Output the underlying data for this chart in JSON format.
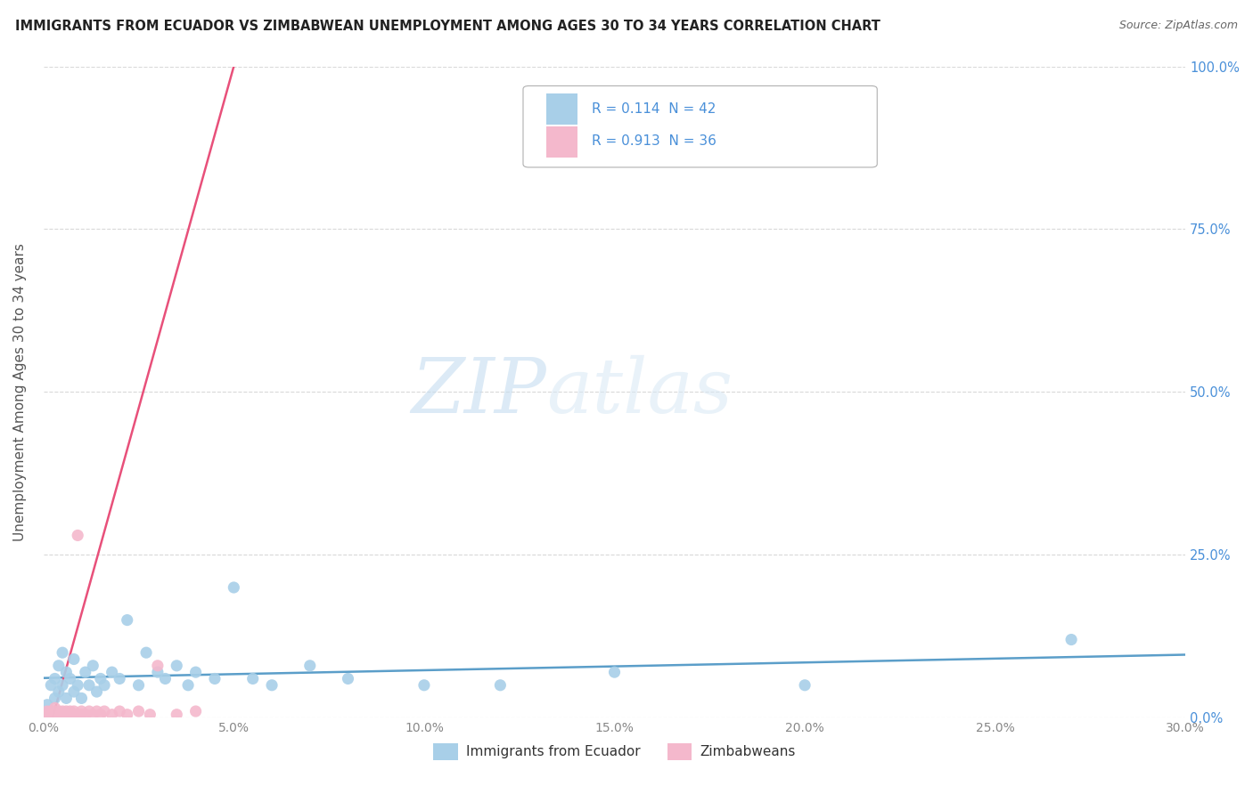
{
  "title": "IMMIGRANTS FROM ECUADOR VS ZIMBABWEAN UNEMPLOYMENT AMONG AGES 30 TO 34 YEARS CORRELATION CHART",
  "source": "Source: ZipAtlas.com",
  "ylabel": "Unemployment Among Ages 30 to 34 years",
  "xlim": [
    0.0,
    0.3
  ],
  "ylim": [
    0.0,
    1.0
  ],
  "xticks": [
    0.0,
    0.05,
    0.1,
    0.15,
    0.2,
    0.25,
    0.3
  ],
  "xticklabels": [
    "0.0%",
    "5.0%",
    "10.0%",
    "15.0%",
    "20.0%",
    "25.0%",
    "30.0%"
  ],
  "yticks": [
    0.0,
    0.25,
    0.5,
    0.75,
    1.0
  ],
  "yticklabels": [
    "0.0%",
    "25.0%",
    "50.0%",
    "75.0%",
    "100.0%"
  ],
  "watermark_zip": "ZIP",
  "watermark_atlas": "atlas",
  "legend_entries": [
    {
      "label": "Immigrants from Ecuador",
      "color": "#a8cfe8",
      "r": 0.114,
      "n": 42
    },
    {
      "label": "Zimbabweans",
      "color": "#f4b8cc",
      "r": 0.913,
      "n": 36
    }
  ],
  "ecuador_scatter_x": [
    0.001,
    0.002,
    0.003,
    0.003,
    0.004,
    0.004,
    0.005,
    0.005,
    0.006,
    0.006,
    0.007,
    0.008,
    0.008,
    0.009,
    0.01,
    0.011,
    0.012,
    0.013,
    0.014,
    0.015,
    0.016,
    0.018,
    0.02,
    0.022,
    0.025,
    0.027,
    0.03,
    0.032,
    0.035,
    0.038,
    0.04,
    0.045,
    0.05,
    0.055,
    0.06,
    0.07,
    0.08,
    0.1,
    0.12,
    0.15,
    0.2,
    0.27
  ],
  "ecuador_scatter_y": [
    0.02,
    0.05,
    0.03,
    0.06,
    0.04,
    0.08,
    0.05,
    0.1,
    0.03,
    0.07,
    0.06,
    0.04,
    0.09,
    0.05,
    0.03,
    0.07,
    0.05,
    0.08,
    0.04,
    0.06,
    0.05,
    0.07,
    0.06,
    0.15,
    0.05,
    0.1,
    0.07,
    0.06,
    0.08,
    0.05,
    0.07,
    0.06,
    0.2,
    0.06,
    0.05,
    0.08,
    0.06,
    0.05,
    0.05,
    0.07,
    0.05,
    0.12
  ],
  "zimbabwe_scatter_x": [
    0.0005,
    0.001,
    0.001,
    0.002,
    0.002,
    0.003,
    0.003,
    0.003,
    0.004,
    0.004,
    0.005,
    0.005,
    0.006,
    0.006,
    0.007,
    0.007,
    0.008,
    0.008,
    0.009,
    0.009,
    0.01,
    0.01,
    0.011,
    0.012,
    0.013,
    0.014,
    0.015,
    0.016,
    0.018,
    0.02,
    0.022,
    0.025,
    0.028,
    0.03,
    0.035,
    0.04
  ],
  "zimbabwe_scatter_y": [
    0.005,
    0.005,
    0.01,
    0.005,
    0.01,
    0.005,
    0.01,
    0.015,
    0.005,
    0.01,
    0.005,
    0.01,
    0.005,
    0.01,
    0.005,
    0.01,
    0.005,
    0.01,
    0.005,
    0.28,
    0.005,
    0.01,
    0.005,
    0.01,
    0.005,
    0.01,
    0.005,
    0.01,
    0.005,
    0.01,
    0.005,
    0.01,
    0.005,
    0.08,
    0.005,
    0.01
  ],
  "ecuador_color": "#a8cfe8",
  "ecuador_line_color": "#5b9ec9",
  "zimbabwe_color": "#f4b8cc",
  "zimbabwe_line_color": "#e8507a",
  "background_color": "#ffffff",
  "grid_color": "#d0d0d0",
  "tick_color": "#4a90d9",
  "xlabel_color": "#888888",
  "ylabel_color": "#555555"
}
